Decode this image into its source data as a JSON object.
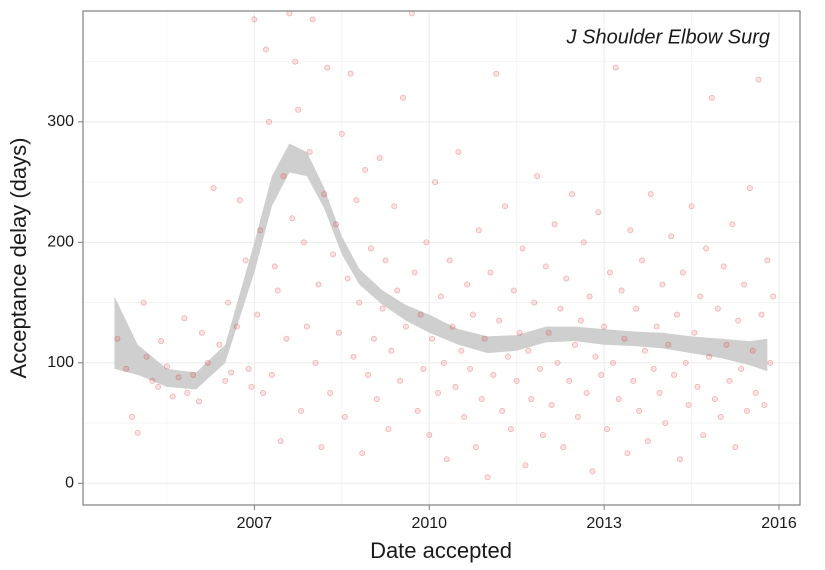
{
  "chart_data": {
    "type": "scatter",
    "annotation": "J Shoulder Elbow Surg",
    "x_label": "Date accepted",
    "y_label": "Acceptance delay (days)",
    "xlim": [
      2004.06,
      2016.36
    ],
    "ylim": [
      -18,
      392
    ],
    "xticks": [
      2007,
      2010,
      2013,
      2016
    ],
    "yticks": [
      0,
      100,
      200,
      300
    ],
    "grid": true,
    "series": [
      {
        "color": "#e41a1c",
        "x": [
          2004.65,
          2004.8,
          2004.9,
          2005.0,
          2005.1,
          2005.15,
          2005.25,
          2005.35,
          2005.4,
          2005.5,
          2005.6,
          2005.7,
          2005.8,
          2005.85,
          2005.95,
          2006.05,
          2006.1,
          2006.2,
          2006.3,
          2006.4,
          2006.5,
          2006.55,
          2006.6,
          2006.7,
          2006.75,
          2006.85,
          2006.9,
          2006.95,
          2007.0,
          2007.05,
          2007.1,
          2007.15,
          2007.2,
          2007.25,
          2007.3,
          2007.35,
          2007.4,
          2007.45,
          2007.5,
          2007.55,
          2007.6,
          2007.65,
          2007.7,
          2007.75,
          2007.8,
          2007.85,
          2007.9,
          2007.95,
          2008.0,
          2008.05,
          2008.1,
          2008.15,
          2008.2,
          2008.25,
          2008.3,
          2008.35,
          2008.4,
          2008.45,
          2008.5,
          2008.55,
          2008.6,
          2008.65,
          2008.7,
          2008.75,
          2008.8,
          2008.85,
          2008.9,
          2008.95,
          2009.0,
          2009.05,
          2009.1,
          2009.15,
          2009.2,
          2009.25,
          2009.3,
          2009.35,
          2009.4,
          2009.45,
          2009.5,
          2009.55,
          2009.6,
          2009.7,
          2009.75,
          2009.8,
          2009.85,
          2009.9,
          2009.95,
          2010.0,
          2010.05,
          2010.1,
          2010.15,
          2010.2,
          2010.25,
          2010.3,
          2010.35,
          2010.4,
          2010.45,
          2010.5,
          2010.55,
          2010.6,
          2010.65,
          2010.7,
          2010.75,
          2010.8,
          2010.85,
          2010.9,
          2010.95,
          2011.0,
          2011.05,
          2011.1,
          2011.15,
          2011.2,
          2011.25,
          2011.3,
          2011.35,
          2011.4,
          2011.45,
          2011.5,
          2011.55,
          2011.6,
          2011.65,
          2011.7,
          2011.75,
          2011.8,
          2011.85,
          2011.9,
          2011.95,
          2012.0,
          2012.05,
          2012.1,
          2012.15,
          2012.2,
          2012.25,
          2012.3,
          2012.35,
          2012.4,
          2012.45,
          2012.5,
          2012.55,
          2012.6,
          2012.65,
          2012.7,
          2012.75,
          2012.8,
          2012.85,
          2012.9,
          2012.95,
          2013.0,
          2013.05,
          2013.1,
          2013.15,
          2013.2,
          2013.25,
          2013.3,
          2013.35,
          2013.4,
          2013.45,
          2013.5,
          2013.55,
          2013.6,
          2013.65,
          2013.7,
          2013.75,
          2013.8,
          2013.85,
          2013.9,
          2013.95,
          2014.0,
          2014.05,
          2014.1,
          2014.15,
          2014.2,
          2014.25,
          2014.3,
          2014.35,
          2014.4,
          2014.45,
          2014.5,
          2014.55,
          2014.6,
          2014.65,
          2014.7,
          2014.75,
          2014.8,
          2014.85,
          2014.9,
          2014.95,
          2015.0,
          2015.05,
          2015.1,
          2015.15,
          2015.2,
          2015.25,
          2015.3,
          2015.35,
          2015.4,
          2015.45,
          2015.5,
          2015.55,
          2015.6,
          2015.65,
          2015.7,
          2015.75,
          2015.8,
          2015.85,
          2015.9
        ],
        "values": [
          120,
          95,
          55,
          42,
          150,
          105,
          85,
          80,
          118,
          97,
          72,
          88,
          137,
          75,
          90,
          68,
          125,
          100,
          245,
          115,
          85,
          150,
          92,
          130,
          235,
          185,
          95,
          80,
          385,
          140,
          210,
          75,
          360,
          300,
          90,
          180,
          160,
          35,
          255,
          120,
          390,
          220,
          350,
          310,
          60,
          200,
          130,
          275,
          385,
          100,
          165,
          30,
          240,
          345,
          75,
          190,
          215,
          125,
          290,
          55,
          170,
          340,
          105,
          235,
          150,
          25,
          260,
          90,
          195,
          120,
          70,
          270,
          145,
          185,
          45,
          110,
          230,
          160,
          85,
          320,
          130,
          390,
          175,
          60,
          140,
          95,
          200,
          40,
          120,
          250,
          75,
          155,
          100,
          20,
          185,
          130,
          80,
          275,
          110,
          55,
          165,
          95,
          140,
          30,
          210,
          70,
          120,
          5,
          175,
          90,
          340,
          135,
          60,
          230,
          105,
          45,
          160,
          85,
          125,
          195,
          15,
          110,
          70,
          150,
          255,
          95,
          40,
          180,
          125,
          65,
          215,
          100,
          145,
          30,
          170,
          85,
          240,
          115,
          55,
          135,
          200,
          75,
          155,
          10,
          105,
          225,
          90,
          130,
          45,
          175,
          100,
          345,
          70,
          160,
          120,
          25,
          210,
          85,
          145,
          60,
          185,
          110,
          35,
          240,
          95,
          130,
          75,
          165,
          50,
          115,
          205,
          90,
          140,
          20,
          175,
          100,
          65,
          230,
          125,
          80,
          155,
          40,
          195,
          105,
          320,
          70,
          145,
          55,
          180,
          115,
          85,
          215,
          30,
          135,
          95,
          165,
          60,
          245,
          110,
          75,
          335,
          140,
          65,
          185,
          100,
          155
        ]
      }
    ],
    "ribbon": {
      "color": "#cccccc",
      "x": [
        2004.6,
        2005.0,
        2005.5,
        2006.0,
        2006.5,
        2007.0,
        2007.3,
        2007.6,
        2007.9,
        2008.2,
        2008.5,
        2008.8,
        2009.2,
        2009.6,
        2010.0,
        2010.5,
        2011.0,
        2011.5,
        2012.0,
        2012.5,
        2013.0,
        2013.5,
        2014.0,
        2014.5,
        2015.0,
        2015.5,
        2015.8
      ],
      "lower": [
        95,
        90,
        80,
        78,
        100,
        175,
        230,
        258,
        255,
        228,
        190,
        165,
        148,
        135,
        125,
        115,
        108,
        110,
        117,
        118,
        115,
        114,
        112,
        108,
        104,
        98,
        93
      ],
      "upper": [
        155,
        115,
        95,
        92,
        115,
        200,
        255,
        282,
        275,
        245,
        205,
        178,
        160,
        148,
        140,
        128,
        122,
        123,
        130,
        130,
        128,
        126,
        125,
        122,
        120,
        118,
        120
      ]
    }
  }
}
